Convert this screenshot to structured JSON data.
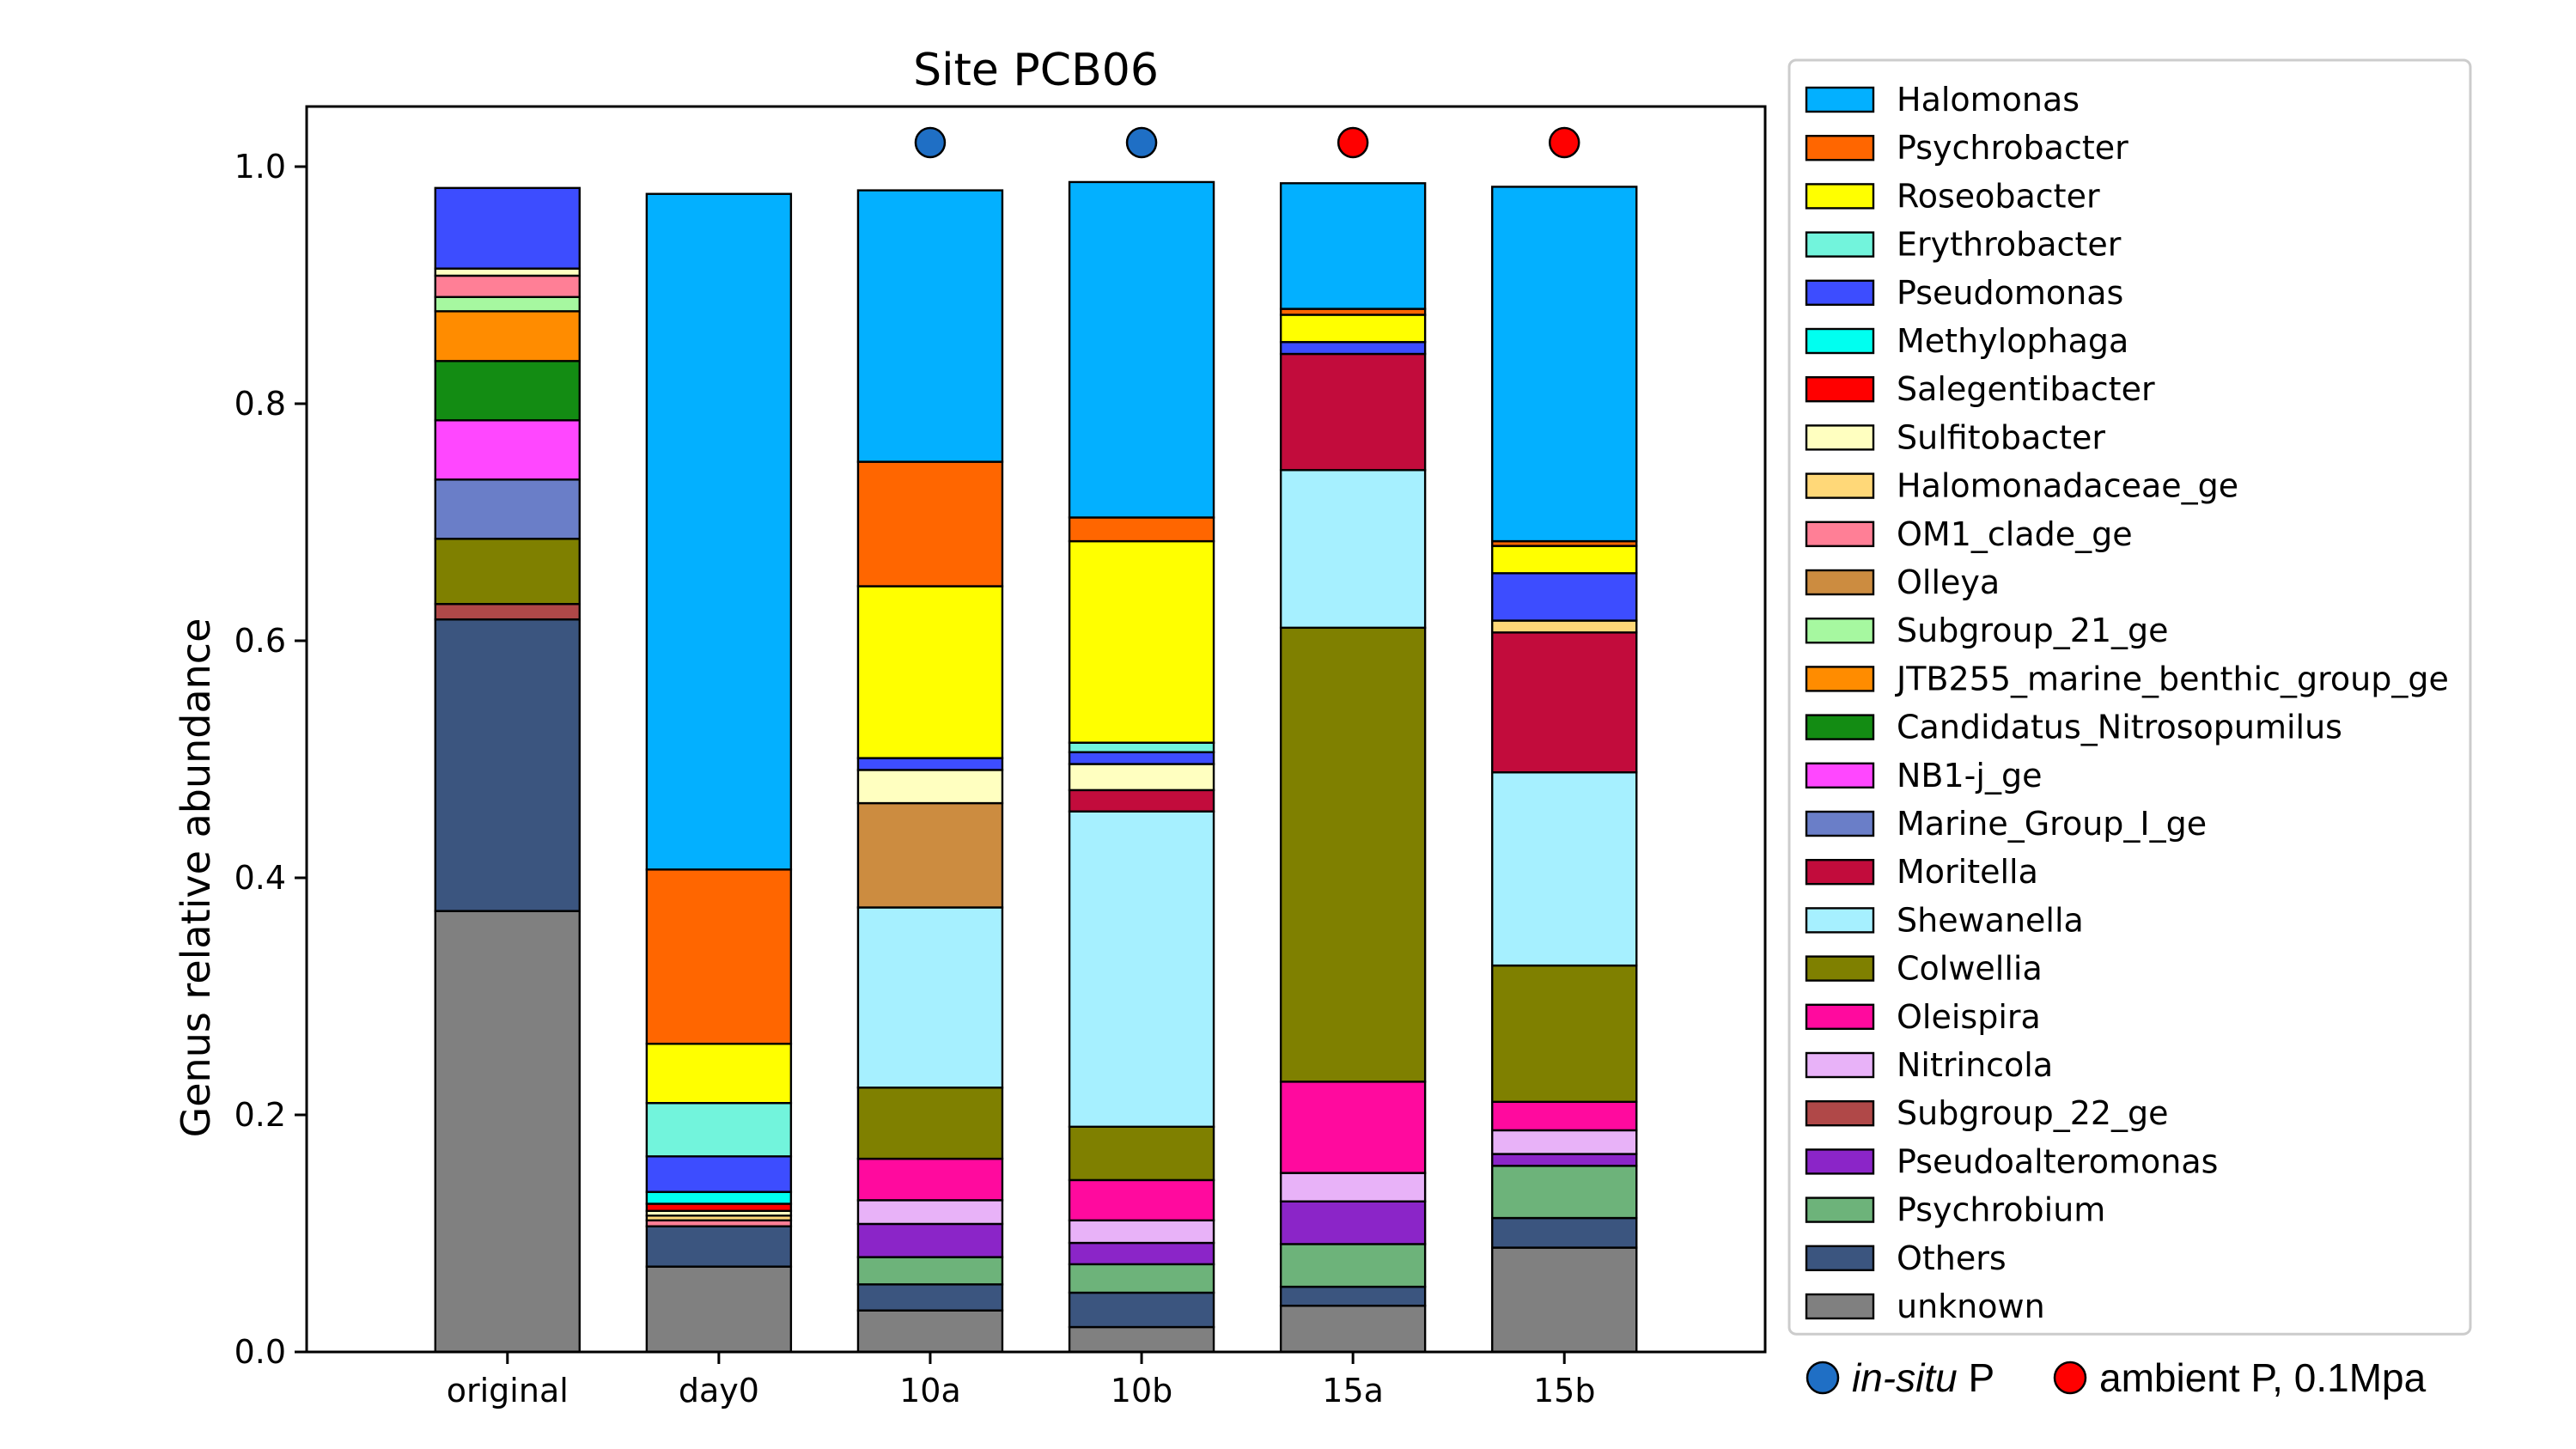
{
  "chart_data": {
    "type": "bar",
    "stacked": true,
    "title": "Site PCB06",
    "xlabel": "",
    "ylabel": "Genus relative abundance",
    "ylim": [
      0,
      1.05
    ],
    "yticks": [
      "0.0",
      "0.2",
      "0.4",
      "0.6",
      "0.8",
      "1.0"
    ],
    "categories": [
      "original",
      "day0",
      "10a",
      "10b",
      "15a",
      "15b"
    ],
    "grid": false,
    "legend_position": "outside-right",
    "series": [
      {
        "name": "unknown",
        "color": "#808080",
        "values": [
          0.372,
          0.072,
          0.035,
          0.021,
          0.039,
          0.088
        ]
      },
      {
        "name": "Others",
        "color": "#3B557F",
        "values": [
          0.246,
          0.034,
          0.022,
          0.029,
          0.016,
          0.025
        ]
      },
      {
        "name": "Psychrobium",
        "color": "#6DB37A",
        "values": [
          0.0,
          0.0,
          0.023,
          0.024,
          0.036,
          0.044
        ]
      },
      {
        "name": "Pseudoalteromonas",
        "color": "#8B25C8",
        "values": [
          0.0,
          0.0,
          0.028,
          0.018,
          0.036,
          0.01
        ]
      },
      {
        "name": "Subgroup_22_ge",
        "color": "#B04848",
        "values": [
          0.013,
          0.0,
          0.0,
          0.0,
          0.0,
          0.0
        ]
      },
      {
        "name": "Nitrincola",
        "color": "#E8B2F8",
        "values": [
          0.0,
          0.0,
          0.02,
          0.019,
          0.024,
          0.02
        ]
      },
      {
        "name": "Oleispira",
        "color": "#FF0A9E",
        "values": [
          0.0,
          0.0,
          0.035,
          0.034,
          0.077,
          0.024
        ]
      },
      {
        "name": "Colwellia",
        "color": "#7F8000",
        "values": [
          0.055,
          0.0,
          0.06,
          0.045,
          0.383,
          0.115
        ]
      },
      {
        "name": "Shewanella",
        "color": "#A6F0FF",
        "values": [
          0.0,
          0.0,
          0.152,
          0.266,
          0.133,
          0.163
        ]
      },
      {
        "name": "Moritella",
        "color": "#C20C3C",
        "values": [
          0.0,
          0.0,
          0.0,
          0.018,
          0.098,
          0.118
        ]
      },
      {
        "name": "Marine_Group_I_ge",
        "color": "#6A7EC8",
        "values": [
          0.05,
          0.0,
          0.0,
          0.0,
          0.0,
          0.0
        ]
      },
      {
        "name": "NB1-j_ge",
        "color": "#FF47FF",
        "values": [
          0.05,
          0.0,
          0.0,
          0.0,
          0.0,
          0.0
        ]
      },
      {
        "name": "Candidatus_Nitrosopumilus",
        "color": "#138C13",
        "values": [
          0.05,
          0.0,
          0.0,
          0.0,
          0.0,
          0.0
        ]
      },
      {
        "name": "JTB255_marine_benthic_group_ge",
        "color": "#FF8C00",
        "values": [
          0.042,
          0.0,
          0.0,
          0.0,
          0.0,
          0.0
        ]
      },
      {
        "name": "Subgroup_21_ge",
        "color": "#A6F8A0",
        "values": [
          0.012,
          0.0,
          0.0,
          0.0,
          0.0,
          0.0
        ]
      },
      {
        "name": "OM1_clade_ge",
        "color": "#FF7F96",
        "values": [
          0.018,
          0.005,
          0.0,
          0.0,
          0.0,
          0.0
        ]
      },
      {
        "name": "Olleya",
        "color": "#CC8C40",
        "values": [
          0.0,
          0.0,
          0.088,
          0.0,
          0.0,
          0.0
        ]
      },
      {
        "name": "Halomonadaceae_ge",
        "color": "#FFD878",
        "values": [
          0.0,
          0.004,
          0.0,
          0.0,
          0.0,
          0.01
        ]
      },
      {
        "name": "Sulfitobacter",
        "color": "#FFFFC0",
        "values": [
          0.006,
          0.004,
          0.028,
          0.022,
          0.0,
          0.0
        ]
      },
      {
        "name": "Salegentibacter",
        "color": "#FF0000",
        "values": [
          0.0,
          0.006,
          0.0,
          0.0,
          0.0,
          0.0
        ]
      },
      {
        "name": "Methylophaga",
        "color": "#00FFF0",
        "values": [
          0.0,
          0.01,
          0.0,
          0.0,
          0.0,
          0.0
        ]
      },
      {
        "name": "Pseudomonas",
        "color": "#3D4DFF",
        "values": [
          0.068,
          0.03,
          0.01,
          0.01,
          0.01,
          0.04
        ]
      },
      {
        "name": "Erythrobacter",
        "color": "#72F4DC",
        "values": [
          0.0,
          0.045,
          0.0,
          0.008,
          0.0,
          0.0
        ]
      },
      {
        "name": "Roseobacter",
        "color": "#FFFF00",
        "values": [
          0.0,
          0.05,
          0.145,
          0.17,
          0.023,
          0.023
        ]
      },
      {
        "name": "Psychrobacter",
        "color": "#FF6600",
        "values": [
          0.0,
          0.147,
          0.105,
          0.02,
          0.005,
          0.004
        ]
      },
      {
        "name": "Halomonas",
        "color": "#03B0FF",
        "values": [
          0.0,
          0.57,
          0.229,
          0.283,
          0.106,
          0.299
        ]
      }
    ],
    "legend_order": [
      "Halomonas",
      "Psychrobacter",
      "Roseobacter",
      "Erythrobacter",
      "Pseudomonas",
      "Methylophaga",
      "Salegentibacter",
      "Sulfitobacter",
      "Halomonadaceae_ge",
      "OM1_clade_ge",
      "Olleya",
      "Subgroup_21_ge",
      "JTB255_marine_benthic_group_ge",
      "Candidatus_Nitrosopumilus",
      "NB1-j_ge",
      "Marine_Group_I_ge",
      "Moritella",
      "Shewanella",
      "Colwellia",
      "Oleispira",
      "Nitrincola",
      "Subgroup_22_ge",
      "Pseudoalteromonas",
      "Psychrobium",
      "Others",
      "unknown"
    ],
    "condition_markers": [
      {
        "category": "10a",
        "condition": "in-situ"
      },
      {
        "category": "10b",
        "condition": "in-situ"
      },
      {
        "category": "15a",
        "condition": "ambient"
      },
      {
        "category": "15b",
        "condition": "ambient"
      }
    ],
    "condition_legend": [
      {
        "key": "in-situ",
        "color": "#1F6FC5",
        "label_italic": "in-situ",
        "label_rest": " P"
      },
      {
        "key": "ambient",
        "color": "#FF0000",
        "label_italic": "",
        "label_rest": "ambient P, 0.1Mpa"
      }
    ]
  }
}
